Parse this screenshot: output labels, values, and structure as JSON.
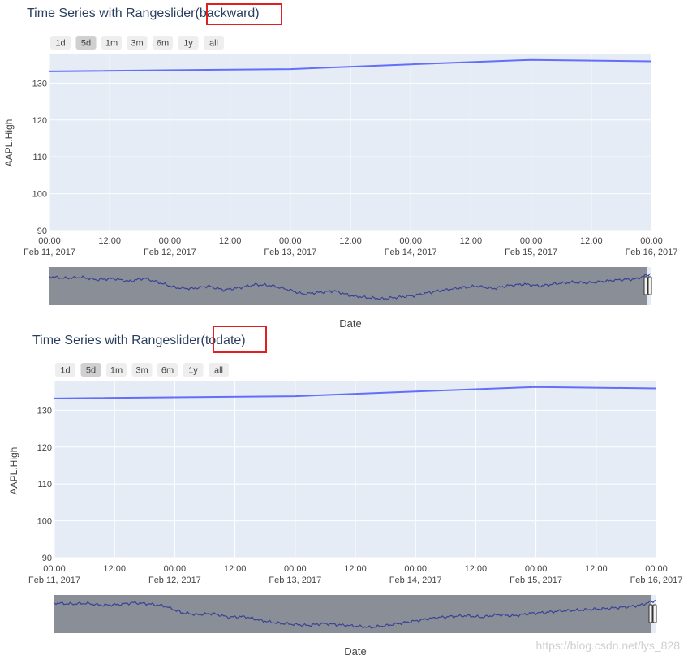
{
  "charts": [
    {
      "title_text": "Time Series with Rangeslider",
      "title_suffix": "(backward)",
      "buttons": [
        "1d",
        "5d",
        "1m",
        "3m",
        "6m",
        "1y",
        "all"
      ],
      "active_button": "5d",
      "xlabel": "Date",
      "ylabel": "AAPL.High"
    },
    {
      "title_text": "Time Series with Rangeslider",
      "title_suffix": "(todate)",
      "buttons": [
        "1d",
        "5d",
        "1m",
        "3m",
        "6m",
        "1y",
        "all"
      ],
      "active_button": "5d",
      "xlabel": "Date",
      "ylabel": "AAPL.High"
    }
  ],
  "chart_data": [
    {
      "type": "line",
      "x": [
        "2017-02-10",
        "2017-02-13",
        "2017-02-14",
        "2017-02-15",
        "2017-02-16"
      ],
      "y": [
        132.9,
        133.8,
        135.1,
        136.3,
        135.9
      ],
      "xlim": [
        "2017-02-11",
        "2017-02-16"
      ],
      "ylim": [
        90,
        138
      ],
      "yticks": [
        90,
        100,
        110,
        120,
        130
      ],
      "xticks_time": [
        "00:00",
        "12:00",
        "00:00",
        "12:00",
        "00:00",
        "12:00",
        "00:00",
        "12:00",
        "00:00",
        "12:00",
        "00:00"
      ],
      "xticks_date": [
        "Feb 11, 2017",
        "Feb 12, 2017",
        "Feb 13, 2017",
        "Feb 14, 2017",
        "Feb 15, 2017",
        "Feb 16, 2017"
      ],
      "grid": true,
      "rangeslider": {
        "overview_y": [
          0.2,
          0.25,
          0.22,
          0.3,
          0.26,
          0.35,
          0.25,
          0.4,
          0.55,
          0.58,
          0.5,
          0.62,
          0.55,
          0.45,
          0.48,
          0.6,
          0.75,
          0.7,
          0.65,
          0.8,
          0.86,
          0.9,
          0.85,
          0.8,
          0.7,
          0.62,
          0.55,
          0.5,
          0.58,
          0.48,
          0.44,
          0.5,
          0.42,
          0.38,
          0.4,
          0.35,
          0.3,
          0.28,
          0.1
        ]
      }
    },
    {
      "type": "line",
      "x": [
        "2017-02-10",
        "2017-02-13",
        "2017-02-14",
        "2017-02-15",
        "2017-02-16"
      ],
      "y": [
        132.9,
        133.8,
        135.1,
        136.3,
        135.9
      ],
      "xlim": [
        "2017-02-11",
        "2017-02-16"
      ],
      "ylim": [
        90,
        138
      ],
      "yticks": [
        90,
        100,
        110,
        120,
        130
      ],
      "xticks_time": [
        "00:00",
        "12:00",
        "00:00",
        "12:00",
        "00:00",
        "12:00",
        "00:00",
        "12:00",
        "00:00",
        "12:00",
        "00:00"
      ],
      "xticks_date": [
        "Feb 11, 2017",
        "Feb 12, 2017",
        "Feb 13, 2017",
        "Feb 14, 2017",
        "Feb 15, 2017",
        "Feb 16, 2017"
      ],
      "grid": true,
      "rangeslider": {
        "overview_y": [
          0.15,
          0.18,
          0.16,
          0.22,
          0.2,
          0.14,
          0.18,
          0.25,
          0.45,
          0.52,
          0.48,
          0.6,
          0.58,
          0.7,
          0.78,
          0.82,
          0.86,
          0.8,
          0.84,
          0.88,
          0.92,
          0.86,
          0.78,
          0.7,
          0.62,
          0.58,
          0.55,
          0.6,
          0.52,
          0.56,
          0.48,
          0.45,
          0.4,
          0.38,
          0.35,
          0.32,
          0.28,
          0.22,
          0.06
        ]
      }
    }
  ],
  "colors": {
    "plot_bg": "#e5ecf6",
    "line": "#636efa",
    "slider_bg": "#8a8e96",
    "slider_line": "#3b4196",
    "highlight": "#e02020",
    "button_bg": "#eeeeee",
    "button_active": "#d0d0d0",
    "text": "#444444",
    "title": "#2a3f5f"
  },
  "watermark": "https://blog.csdn.net/lys_828"
}
